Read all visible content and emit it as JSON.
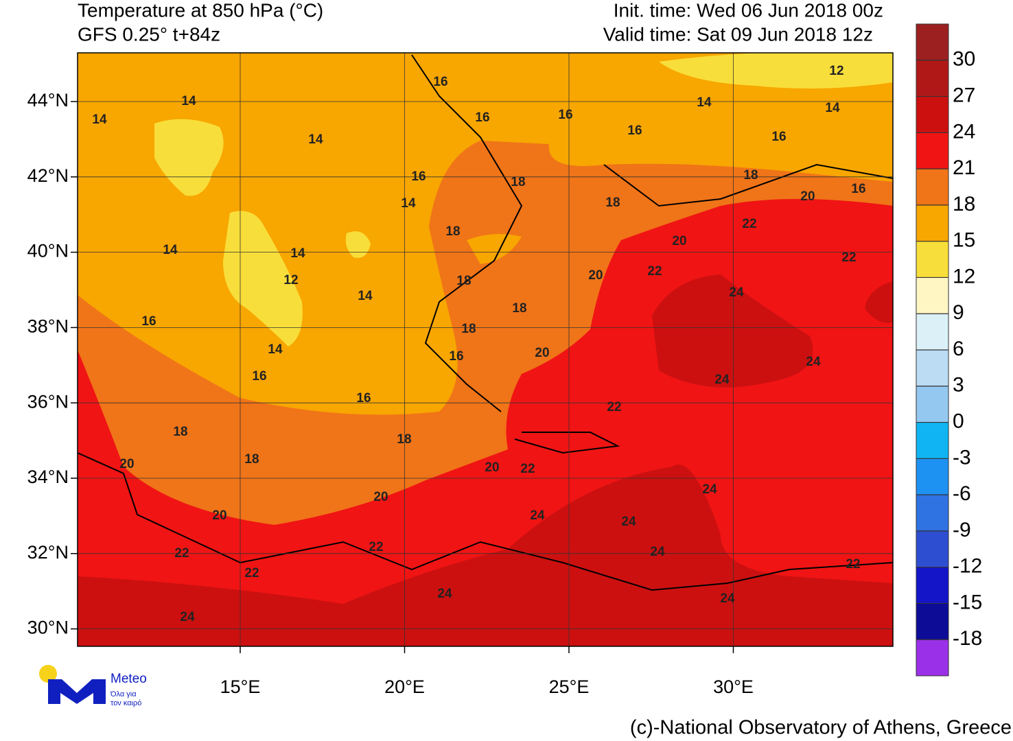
{
  "header": {
    "title": "Temperature at 850 hPa (°C)",
    "subtitle": "GFS 0.25° t+84z",
    "init_time": "Init. time: Wed 06 Jun 2018 00z",
    "valid_time": "Valid time: Sat 09 Jun 2018 12z"
  },
  "map": {
    "lat_ticks": [
      {
        "value": 44,
        "label": "44°N"
      },
      {
        "value": 42,
        "label": "42°N"
      },
      {
        "value": 40,
        "label": "40°N"
      },
      {
        "value": 38,
        "label": "38°N"
      },
      {
        "value": 36,
        "label": "36°N"
      },
      {
        "value": 34,
        "label": "34°N"
      },
      {
        "value": 32,
        "label": "32°N"
      },
      {
        "value": 30,
        "label": "30°N"
      }
    ],
    "lon_ticks": [
      {
        "value": 15,
        "label": "15°E"
      },
      {
        "value": 20,
        "label": "20°E"
      },
      {
        "value": 25,
        "label": "25°E"
      },
      {
        "value": 30,
        "label": "30°E"
      }
    ],
    "contour_labels": [
      14,
      14,
      16,
      16,
      16,
      16,
      14,
      12,
      14,
      16,
      14,
      16,
      18,
      18,
      20,
      16,
      14,
      18,
      22,
      18,
      20,
      14,
      14,
      22,
      12,
      18,
      20,
      22,
      24,
      14,
      18,
      16,
      18,
      14,
      16,
      20,
      24,
      16,
      24,
      16,
      22,
      18,
      18,
      18,
      20,
      20,
      22,
      24,
      20,
      20,
      24,
      24,
      22,
      22,
      24,
      22,
      22,
      24,
      24,
      24
    ]
  },
  "colorbar": {
    "bins": [
      -21,
      -18,
      -15,
      -12,
      -9,
      -6,
      -3,
      0,
      3,
      6,
      9,
      12,
      15,
      18,
      21,
      24,
      27,
      30,
      33
    ],
    "colors": [
      "#9a30e8",
      "#0c0c96",
      "#1414c8",
      "#2e4ed2",
      "#2f72e2",
      "#1e92f2",
      "#10b4f2",
      "#94c8f0",
      "#bcdcf4",
      "#dcf0f8",
      "#fff6c4",
      "#f8de3a",
      "#f8a600",
      "#f07418",
      "#f01414",
      "#cc1010",
      "#b01818",
      "#9c2020"
    ],
    "ticks": [
      30,
      27,
      24,
      21,
      18,
      15,
      12,
      9,
      6,
      3,
      0,
      -3,
      -6,
      -9,
      -12,
      -15,
      -18
    ]
  },
  "logo": {
    "name": "Meteo",
    "line1": "Όλα για",
    "line2": "τον καιρό"
  },
  "footer": "(c)-National Observatory of Athens, Greece"
}
